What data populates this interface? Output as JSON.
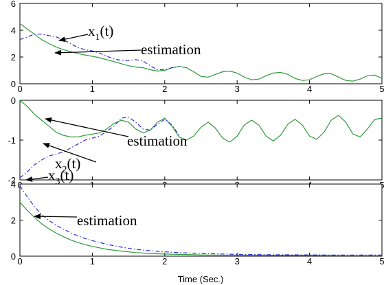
{
  "chart_data": {
    "type": "line",
    "xlabel": "Time (Sec.)",
    "colors": {
      "actual": "#2e9a3a",
      "estimate": "#2b2bd8",
      "frame": "#000000"
    },
    "subplots": [
      {
        "id": "x1",
        "xlim": [
          0,
          5
        ],
        "ylim": [
          0,
          6
        ],
        "xticks": [
          0,
          1,
          2,
          3,
          4,
          5
        ],
        "yticks": [
          0,
          2,
          4,
          6
        ],
        "grid": false,
        "series": [
          {
            "style": "solid",
            "x": [
              0,
              0.1,
              0.2,
              0.3,
              0.4,
              0.5,
              0.6,
              0.7,
              0.8,
              0.9,
              1.0,
              1.1,
              1.2,
              1.3,
              1.4,
              1.5,
              1.6,
              1.7,
              1.8,
              1.9,
              2.0,
              2.1,
              2.2,
              2.3,
              2.4,
              2.5,
              2.6,
              2.7,
              2.8,
              2.9,
              3.0,
              3.1,
              3.2,
              3.3,
              3.4,
              3.5,
              3.6,
              3.7,
              3.8,
              3.9,
              4.0,
              4.1,
              4.2,
              4.3,
              4.4,
              4.5,
              4.6,
              4.7,
              4.8,
              4.9,
              5.0
            ],
            "y": [
              4.5,
              4.1,
              3.7,
              3.3,
              3.0,
              2.75,
              2.55,
              2.4,
              2.25,
              2.15,
              2.05,
              1.95,
              1.8,
              1.65,
              1.5,
              1.35,
              1.25,
              1.2,
              1.05,
              0.95,
              1.0,
              1.2,
              1.3,
              1.2,
              0.9,
              0.55,
              0.5,
              0.7,
              0.9,
              0.95,
              0.8,
              0.5,
              0.3,
              0.35,
              0.6,
              0.8,
              0.85,
              0.7,
              0.4,
              0.25,
              0.3,
              0.55,
              0.75,
              0.75,
              0.5,
              0.25,
              0.2,
              0.35,
              0.6,
              0.65,
              0.4
            ]
          },
          {
            "style": "dashdot",
            "x": [
              0,
              0.1,
              0.2,
              0.3,
              0.4,
              0.5,
              0.6,
              0.7,
              0.8,
              0.9,
              1.0,
              1.1,
              1.2,
              1.3,
              1.4,
              1.5,
              1.6,
              1.7,
              1.8,
              1.9,
              2.0,
              2.1,
              2.2
            ],
            "y": [
              3.3,
              3.5,
              3.7,
              3.7,
              3.6,
              3.5,
              3.3,
              3.0,
              2.7,
              2.55,
              2.45,
              2.3,
              2.05,
              1.85,
              1.75,
              1.75,
              1.8,
              1.7,
              1.35,
              1.05,
              1.05,
              1.2,
              1.3
            ]
          }
        ],
        "annotations": [
          {
            "text": "x",
            "sub": "1",
            "suffix": "(t)"
          },
          {
            "text": "estimation"
          }
        ]
      },
      {
        "id": "x2",
        "xlim": [
          0,
          5
        ],
        "ylim": [
          -2,
          0
        ],
        "xticks": [
          0,
          1,
          2,
          3,
          4,
          5
        ],
        "yticks": [
          -2,
          -1,
          0
        ],
        "grid": false,
        "series": [
          {
            "style": "solid",
            "x": [
              0,
              0.1,
              0.2,
              0.3,
              0.4,
              0.5,
              0.6,
              0.7,
              0.8,
              0.9,
              1.0,
              1.1,
              1.2,
              1.3,
              1.4,
              1.5,
              1.6,
              1.7,
              1.8,
              1.9,
              2.0,
              2.1,
              2.2,
              2.3,
              2.4,
              2.5,
              2.6,
              2.7,
              2.8,
              2.9,
              3.0,
              3.1,
              3.2,
              3.3,
              3.4,
              3.5,
              3.6,
              3.7,
              3.8,
              3.9,
              4.0,
              4.1,
              4.2,
              4.3,
              4.4,
              4.5,
              4.6,
              4.7,
              4.8,
              4.9,
              5.0
            ],
            "y": [
              0.0,
              -0.15,
              -0.35,
              -0.5,
              -0.65,
              -0.8,
              -0.88,
              -0.92,
              -0.92,
              -0.88,
              -0.85,
              -0.82,
              -0.72,
              -0.58,
              -0.5,
              -0.55,
              -0.72,
              -0.82,
              -0.75,
              -0.55,
              -0.45,
              -0.65,
              -0.92,
              -1.0,
              -0.9,
              -0.68,
              -0.55,
              -0.7,
              -0.95,
              -1.05,
              -0.9,
              -0.62,
              -0.5,
              -0.62,
              -0.9,
              -1.02,
              -0.88,
              -0.6,
              -0.48,
              -0.62,
              -0.9,
              -0.98,
              -0.8,
              -0.5,
              -0.38,
              -0.55,
              -0.85,
              -0.92,
              -0.72,
              -0.48,
              -0.45
            ]
          },
          {
            "style": "dashdot",
            "x": [
              0,
              0.1,
              0.2,
              0.3,
              0.4,
              0.5,
              0.6,
              0.7,
              0.8,
              0.9,
              1.0,
              1.1,
              1.2,
              1.3,
              1.4,
              1.5,
              1.6,
              1.7,
              1.8,
              1.9,
              2.0,
              2.1,
              2.2
            ],
            "y": [
              -1.95,
              -1.8,
              -1.62,
              -1.5,
              -1.4,
              -1.35,
              -1.3,
              -1.2,
              -1.1,
              -1.0,
              -0.95,
              -0.9,
              -0.78,
              -0.65,
              -0.45,
              -0.42,
              -0.55,
              -0.72,
              -0.75,
              -0.6,
              -0.48,
              -0.62,
              -0.88
            ]
          }
        ],
        "annotations": [
          {
            "text": "estimation"
          },
          {
            "text": "x",
            "sub": "2",
            "suffix": "(t)"
          }
        ]
      },
      {
        "id": "x3",
        "xlim": [
          0,
          5
        ],
        "ylim": [
          0,
          4
        ],
        "xticks": [
          0,
          1,
          2,
          3,
          4,
          5
        ],
        "yticks": [
          0,
          2,
          4
        ],
        "grid": false,
        "series": [
          {
            "style": "solid",
            "x": [
              0,
              0.1,
              0.2,
              0.3,
              0.4,
              0.5,
              0.6,
              0.7,
              0.8,
              0.9,
              1.0,
              1.2,
              1.4,
              1.6,
              1.8,
              2.0,
              2.2,
              2.5,
              3.0,
              3.5,
              4.0,
              4.5,
              5.0
            ],
            "y": [
              3.0,
              2.55,
              2.15,
              1.8,
              1.52,
              1.28,
              1.08,
              0.9,
              0.76,
              0.64,
              0.54,
              0.38,
              0.28,
              0.2,
              0.15,
              0.12,
              0.1,
              0.07,
              0.05,
              0.04,
              0.04,
              0.03,
              0.03
            ]
          },
          {
            "style": "dashdot",
            "x": [
              0,
              0.1,
              0.2,
              0.3,
              0.4,
              0.5,
              0.6,
              0.7,
              0.8,
              0.9,
              1.0,
              1.2,
              1.4,
              1.6,
              1.8,
              2.0,
              2.2,
              2.5,
              3.0,
              3.5,
              4.0,
              4.5,
              5.0
            ],
            "y": [
              3.9,
              3.3,
              2.75,
              2.3,
              1.98,
              1.72,
              1.5,
              1.3,
              1.12,
              0.98,
              0.86,
              0.66,
              0.5,
              0.38,
              0.3,
              0.24,
              0.2,
              0.15,
              0.1,
              0.08,
              0.07,
              0.06,
              0.06
            ]
          }
        ],
        "annotations": [
          {
            "text": "x",
            "sub": "3",
            "suffix": "(t)"
          },
          {
            "text": "estimation"
          }
        ]
      }
    ]
  }
}
